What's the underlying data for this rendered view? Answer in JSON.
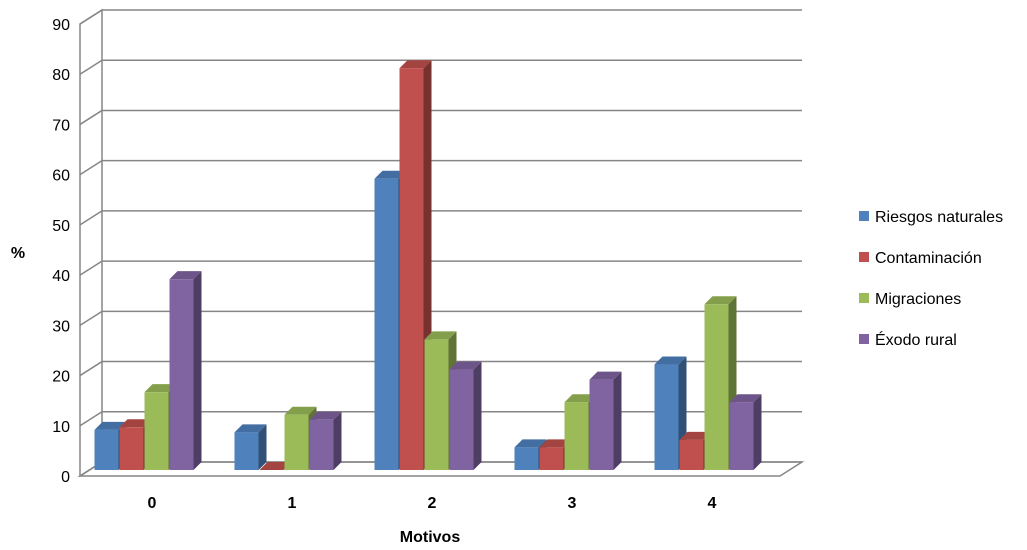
{
  "chart_data": {
    "type": "bar",
    "subtype": "3d-clustered-column",
    "categories": [
      "0",
      "1",
      "2",
      "3",
      "4"
    ],
    "series": [
      {
        "name": "Riesgos naturales",
        "color": "#4F81BD",
        "values": [
          8,
          7.5,
          58,
          4.5,
          21
        ]
      },
      {
        "name": "Contaminación",
        "color": "#C0504D",
        "values": [
          8.5,
          0,
          80,
          4.5,
          6
        ]
      },
      {
        "name": "Migraciones",
        "color": "#9BBB59",
        "values": [
          15.5,
          11,
          26,
          13.5,
          33
        ]
      },
      {
        "name": "Éxodo rural",
        "color": "#8064A2",
        "values": [
          38,
          10,
          20,
          18,
          13.5
        ]
      }
    ],
    "yticks": [
      0,
      10,
      20,
      30,
      40,
      50,
      60,
      70,
      80,
      90
    ],
    "ylim": [
      0,
      90
    ],
    "xlabel": "Motivos",
    "ylabel": "%",
    "grid": true,
    "legend_position": "right"
  }
}
